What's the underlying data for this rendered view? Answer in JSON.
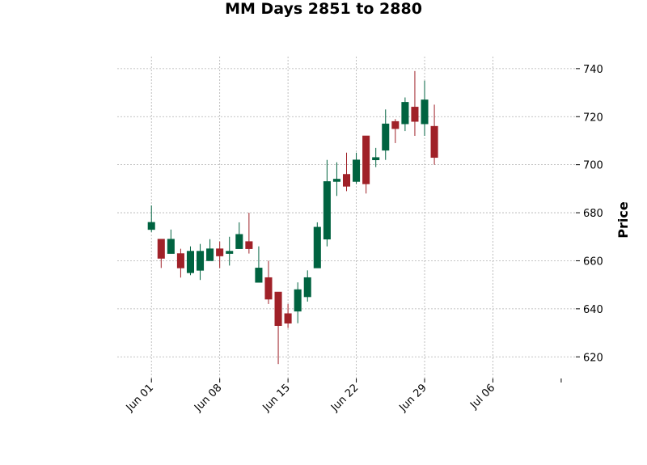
{
  "chart_data": {
    "type": "candlestick",
    "title": "MM Days 2851 to 2880",
    "ylabel": "Price",
    "xlabel": "",
    "ylim": [
      611,
      745
    ],
    "y_ticks": [
      620,
      640,
      660,
      680,
      700,
      720,
      740
    ],
    "x_tick_labels": [
      "Jun 01",
      "Jun 08",
      "Jun 15",
      "Jun 22",
      "Jun 29",
      "Jul 06",
      ""
    ],
    "x_tick_days": [
      0,
      7,
      14,
      21,
      28,
      35,
      42
    ],
    "x_range_days": [
      -3.5,
      43.5
    ],
    "grid": true,
    "up_color": "#006340",
    "down_color": "#a02128",
    "candles": [
      {
        "day": 0,
        "open": 673,
        "high": 683,
        "low": 672,
        "close": 676
      },
      {
        "day": 1,
        "open": 669,
        "high": 669,
        "low": 657,
        "close": 661
      },
      {
        "day": 2,
        "open": 663,
        "high": 673,
        "low": 663,
        "close": 669
      },
      {
        "day": 3,
        "open": 663,
        "high": 665,
        "low": 653,
        "close": 657
      },
      {
        "day": 4,
        "open": 655,
        "high": 666,
        "low": 654,
        "close": 664
      },
      {
        "day": 5,
        "open": 656,
        "high": 667,
        "low": 652,
        "close": 664
      },
      {
        "day": 6,
        "open": 660,
        "high": 669,
        "low": 660,
        "close": 665
      },
      {
        "day": 7,
        "open": 665,
        "high": 668,
        "low": 657,
        "close": 662
      },
      {
        "day": 8,
        "open": 663,
        "high": 670,
        "low": 658,
        "close": 664
      },
      {
        "day": 9,
        "open": 665,
        "high": 676,
        "low": 665,
        "close": 671
      },
      {
        "day": 10,
        "open": 668,
        "high": 680,
        "low": 663,
        "close": 665
      },
      {
        "day": 11,
        "open": 651,
        "high": 666,
        "low": 651,
        "close": 657
      },
      {
        "day": 12,
        "open": 653,
        "high": 660,
        "low": 642,
        "close": 644
      },
      {
        "day": 13,
        "open": 647,
        "high": 647,
        "low": 617,
        "close": 633
      },
      {
        "day": 14,
        "open": 638,
        "high": 642,
        "low": 632,
        "close": 634
      },
      {
        "day": 15,
        "open": 639,
        "high": 651,
        "low": 634,
        "close": 648
      },
      {
        "day": 16,
        "open": 645,
        "high": 656,
        "low": 643,
        "close": 653
      },
      {
        "day": 17,
        "open": 657,
        "high": 676,
        "low": 657,
        "close": 674
      },
      {
        "day": 18,
        "open": 669,
        "high": 702,
        "low": 666,
        "close": 693
      },
      {
        "day": 19,
        "open": 693,
        "high": 701,
        "low": 687,
        "close": 694
      },
      {
        "day": 20,
        "open": 696,
        "high": 705,
        "low": 689,
        "close": 691
      },
      {
        "day": 21,
        "open": 693,
        "high": 705,
        "low": 692,
        "close": 702
      },
      {
        "day": 22,
        "open": 712,
        "high": 712,
        "low": 688,
        "close": 692
      },
      {
        "day": 23,
        "open": 702,
        "high": 707,
        "low": 699,
        "close": 703
      },
      {
        "day": 24,
        "open": 706,
        "high": 723,
        "low": 702,
        "close": 717
      },
      {
        "day": 25,
        "open": 718,
        "high": 719,
        "low": 709,
        "close": 715
      },
      {
        "day": 26,
        "open": 717,
        "high": 728,
        "low": 714,
        "close": 726
      },
      {
        "day": 27,
        "open": 724,
        "high": 739,
        "low": 712,
        "close": 718
      },
      {
        "day": 28,
        "open": 717,
        "high": 735,
        "low": 712,
        "close": 727
      },
      {
        "day": 29,
        "open": 716,
        "high": 725,
        "low": 700,
        "close": 703
      }
    ]
  }
}
